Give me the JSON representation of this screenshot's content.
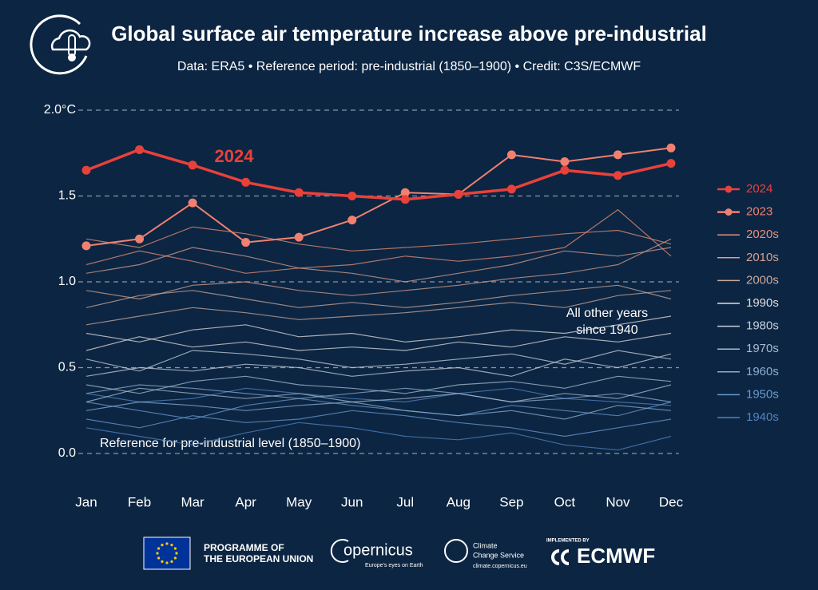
{
  "chart_data": {
    "type": "line",
    "title": "Global surface air temperature increase above pre-industrial",
    "subtitle": "Data: ERA5 • Reference period: pre-industrial (1850–1900) • Credit: C3S/ECMWF",
    "categories": [
      "Jan",
      "Feb",
      "Mar",
      "Apr",
      "May",
      "Jun",
      "Jul",
      "Aug",
      "Sep",
      "Oct",
      "Nov",
      "Dec"
    ],
    "ylim": [
      -0.25,
      2.1
    ],
    "yticks": [
      {
        "value": 0,
        "label": "0.0"
      },
      0.5,
      {
        "value": 1,
        "label": "1.0"
      },
      1.5,
      {
        "value": 2,
        "label": "2.0°C"
      }
    ],
    "grid": true,
    "annotations": {
      "highlight": "2024",
      "other_years": [
        "All other years",
        "since 1940"
      ],
      "reference": "Reference for pre-industrial level (1850–1900)"
    },
    "series": [
      {
        "name": "2024",
        "color": "#e8413a",
        "values": [
          1.65,
          1.77,
          1.68,
          1.58,
          1.52,
          1.5,
          1.48,
          1.51,
          1.54,
          1.65,
          1.62,
          1.69
        ]
      },
      {
        "name": "2023",
        "color": "#f08070",
        "values": [
          1.21,
          1.25,
          1.46,
          1.23,
          1.26,
          1.36,
          1.52,
          1.51,
          1.74,
          1.7,
          1.74,
          1.78
        ]
      },
      {
        "name": "2020s",
        "color": "#e8907a",
        "lines": [
          [
            1.25,
            1.2,
            1.32,
            1.28,
            1.22,
            1.18,
            1.2,
            1.22,
            1.25,
            1.28,
            1.3,
            1.22
          ],
          [
            1.1,
            1.18,
            1.12,
            1.05,
            1.08,
            1.1,
            1.15,
            1.12,
            1.15,
            1.2,
            1.42,
            1.15
          ]
        ]
      },
      {
        "name": "2010s",
        "color": "#d6a08f",
        "lines": [
          [
            1.05,
            1.1,
            1.2,
            1.15,
            1.08,
            1.05,
            1.0,
            1.05,
            1.1,
            1.18,
            1.15,
            1.2
          ],
          [
            0.95,
            0.9,
            0.98,
            1.0,
            0.95,
            0.92,
            0.95,
            0.98,
            1.02,
            1.05,
            1.1,
            1.25
          ]
        ]
      },
      {
        "name": "2000s",
        "color": "#c9aa9c",
        "lines": [
          [
            0.85,
            0.92,
            0.95,
            0.9,
            0.85,
            0.88,
            0.85,
            0.88,
            0.92,
            0.95,
            0.98,
            0.9
          ],
          [
            0.75,
            0.8,
            0.85,
            0.82,
            0.78,
            0.8,
            0.82,
            0.85,
            0.88,
            0.85,
            0.92,
            0.95
          ]
        ]
      },
      {
        "name": "1990s",
        "color": "#e0dcdc",
        "lines": [
          [
            0.7,
            0.65,
            0.72,
            0.75,
            0.68,
            0.7,
            0.65,
            0.68,
            0.72,
            0.7,
            0.75,
            0.8
          ],
          [
            0.6,
            0.68,
            0.62,
            0.65,
            0.6,
            0.62,
            0.6,
            0.65,
            0.62,
            0.68,
            0.65,
            0.7
          ]
        ]
      },
      {
        "name": "1980s",
        "color": "#c8d0dc",
        "lines": [
          [
            0.55,
            0.48,
            0.6,
            0.58,
            0.55,
            0.5,
            0.52,
            0.55,
            0.58,
            0.52,
            0.6,
            0.55
          ],
          [
            0.45,
            0.5,
            0.48,
            0.52,
            0.5,
            0.45,
            0.48,
            0.5,
            0.45,
            0.55,
            0.5,
            0.58
          ]
        ]
      },
      {
        "name": "1970s",
        "color": "#a8bcd2",
        "lines": [
          [
            0.4,
            0.35,
            0.42,
            0.45,
            0.4,
            0.38,
            0.35,
            0.4,
            0.42,
            0.38,
            0.45,
            0.42
          ],
          [
            0.3,
            0.38,
            0.35,
            0.32,
            0.35,
            0.3,
            0.32,
            0.35,
            0.3,
            0.35,
            0.32,
            0.4
          ]
        ]
      },
      {
        "name": "1960s",
        "color": "#8aaed3",
        "lines": [
          [
            0.35,
            0.4,
            0.38,
            0.35,
            0.32,
            0.35,
            0.38,
            0.35,
            0.3,
            0.32,
            0.35,
            0.3
          ],
          [
            0.25,
            0.3,
            0.28,
            0.25,
            0.28,
            0.3,
            0.25,
            0.22,
            0.25,
            0.2,
            0.28,
            0.25
          ]
        ]
      },
      {
        "name": "1950s",
        "color": "#6a9ad0",
        "lines": [
          [
            0.3,
            0.25,
            0.2,
            0.28,
            0.32,
            0.28,
            0.25,
            0.22,
            0.28,
            0.25,
            0.22,
            0.3
          ],
          [
            0.2,
            0.15,
            0.22,
            0.18,
            0.2,
            0.25,
            0.22,
            0.18,
            0.15,
            0.1,
            0.15,
            0.2
          ]
        ]
      },
      {
        "name": "1940s",
        "color": "#4e84c4",
        "lines": [
          [
            0.35,
            0.3,
            0.32,
            0.38,
            0.35,
            0.32,
            0.3,
            0.35,
            0.38,
            0.32,
            0.3,
            0.28
          ],
          [
            0.15,
            0.1,
            0.05,
            0.12,
            0.18,
            0.15,
            0.1,
            0.08,
            0.12,
            0.05,
            0.02,
            0.1
          ]
        ]
      }
    ]
  },
  "logos": {
    "eu": [
      "PROGRAMME OF",
      "THE EUROPEAN UNION"
    ],
    "copernicus": "opernicus",
    "copernicus_tagline": "Europe's eyes on Earth",
    "c3s": [
      "Climate",
      "Change Service"
    ],
    "c3s_url": "climate.copernicus.eu",
    "ecmwf_pre": "IMPLEMENTED BY",
    "ecmwf": "ECMWF"
  }
}
